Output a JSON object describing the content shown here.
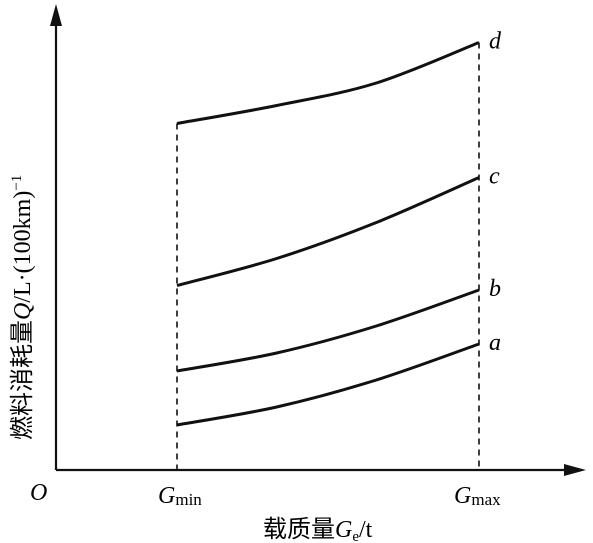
{
  "chart_data": {
    "type": "line",
    "origin_label": "O",
    "xlabel": "载质量G_e/t",
    "ylabel": "燃料消耗量Q/L·(100km)^-1",
    "x": [
      "Gmin",
      "Gmax"
    ],
    "x_tick_labels": [
      {
        "base": "G",
        "sub": "min"
      },
      {
        "base": "G",
        "sub": "max"
      }
    ],
    "series": [
      {
        "name": "a",
        "points": [
          [
            0,
            0.1
          ],
          [
            0.33,
            0.14
          ],
          [
            0.66,
            0.2
          ],
          [
            1,
            0.28
          ]
        ]
      },
      {
        "name": "b",
        "points": [
          [
            0,
            0.22
          ],
          [
            0.33,
            0.26
          ],
          [
            0.66,
            0.32
          ],
          [
            1,
            0.4
          ]
        ]
      },
      {
        "name": "c",
        "points": [
          [
            0,
            0.41
          ],
          [
            0.33,
            0.47
          ],
          [
            0.66,
            0.55
          ],
          [
            1,
            0.65
          ]
        ]
      },
      {
        "name": "d",
        "points": [
          [
            0,
            0.77
          ],
          [
            0.33,
            0.81
          ],
          [
            0.66,
            0.86
          ],
          [
            1,
            0.95
          ]
        ]
      }
    ],
    "grid": false,
    "legend": "labels at line ends"
  },
  "ylabel_parts": {
    "text": "燃料消耗量",
    "var": "Q",
    "unit": "/L·(100km)",
    "exp": "−1"
  },
  "xlabel_parts": {
    "text": "载质量",
    "var": "G",
    "sub": "e",
    "unit": "/t"
  },
  "x_ticks": [
    "Gmin",
    "Gmax"
  ]
}
